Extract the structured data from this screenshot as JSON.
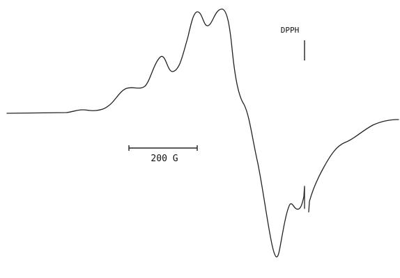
{
  "figure": {
    "reference_label": "DPPH",
    "scale_bar_label": "200 G"
  }
}
